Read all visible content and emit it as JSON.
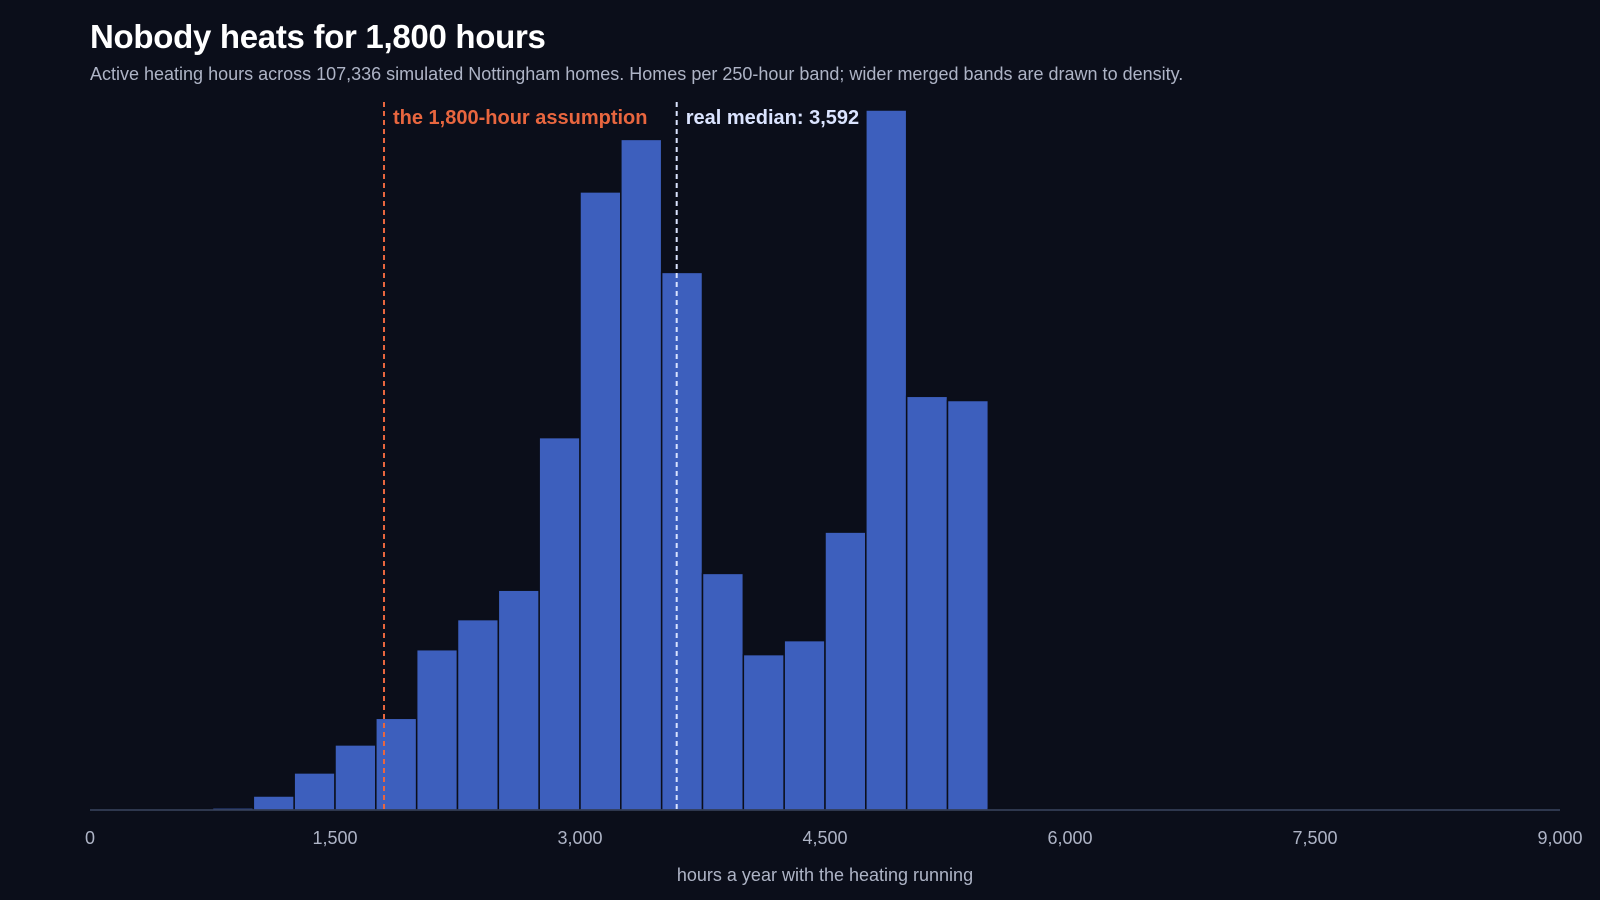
{
  "chart_data": {
    "type": "bar",
    "title": "Nobody heats for 1,800 hours",
    "subtitle": "Active heating hours across 107,336 simulated Nottingham homes. Homes per 250-hour band; wider merged bands are drawn to density.",
    "xlabel": "hours a year with the heating running",
    "ylabel": "",
    "xlim": [
      0,
      9000
    ],
    "ylim": [
      0,
      100
    ],
    "grid": false,
    "legend": "none",
    "x_ticks": [
      {
        "value": 0,
        "label": "0"
      },
      {
        "value": 1500,
        "label": "1,500"
      },
      {
        "value": 3000,
        "label": "3,000"
      },
      {
        "value": 4500,
        "label": "4,500"
      },
      {
        "value": 6000,
        "label": "6,000"
      },
      {
        "value": 7500,
        "label": "7,500"
      },
      {
        "value": 9000,
        "label": "9,000"
      }
    ],
    "bins": [
      {
        "start": 0,
        "end": 750,
        "value": 0.1
      },
      {
        "start": 750,
        "end": 1000,
        "value": 0.3
      },
      {
        "start": 1000,
        "end": 1250,
        "value": 2.0
      },
      {
        "start": 1250,
        "end": 1500,
        "value": 5.3
      },
      {
        "start": 1500,
        "end": 1750,
        "value": 9.3
      },
      {
        "start": 1750,
        "end": 2000,
        "value": 13.1
      },
      {
        "start": 2000,
        "end": 2250,
        "value": 22.9
      },
      {
        "start": 2250,
        "end": 2500,
        "value": 27.2
      },
      {
        "start": 2500,
        "end": 2750,
        "value": 31.4
      },
      {
        "start": 2750,
        "end": 3000,
        "value": 53.2
      },
      {
        "start": 3000,
        "end": 3250,
        "value": 88.3
      },
      {
        "start": 3250,
        "end": 3500,
        "value": 95.8
      },
      {
        "start": 3500,
        "end": 3750,
        "value": 76.8
      },
      {
        "start": 3750,
        "end": 4000,
        "value": 33.8
      },
      {
        "start": 4000,
        "end": 4250,
        "value": 22.2
      },
      {
        "start": 4250,
        "end": 4500,
        "value": 24.2
      },
      {
        "start": 4500,
        "end": 4750,
        "value": 39.7
      },
      {
        "start": 4750,
        "end": 5000,
        "value": 100.0
      },
      {
        "start": 5000,
        "end": 5250,
        "value": 59.1
      },
      {
        "start": 5250,
        "end": 5500,
        "value": 58.5
      },
      {
        "start": 5500,
        "end": 9000,
        "value": 0.2
      }
    ],
    "reference_lines": [
      {
        "x": 1800,
        "label": "the 1,800-hour assumption",
        "color": "#e8663f",
        "label_side": "left"
      },
      {
        "x": 3592,
        "label": "real median: 3,592",
        "color": "#dbe4ff",
        "label_side": "right"
      }
    ],
    "colors": {
      "bar": "#3d5fbd",
      "bar_stroke": "#0b0e1a",
      "baseline": "#3a4560"
    }
  }
}
